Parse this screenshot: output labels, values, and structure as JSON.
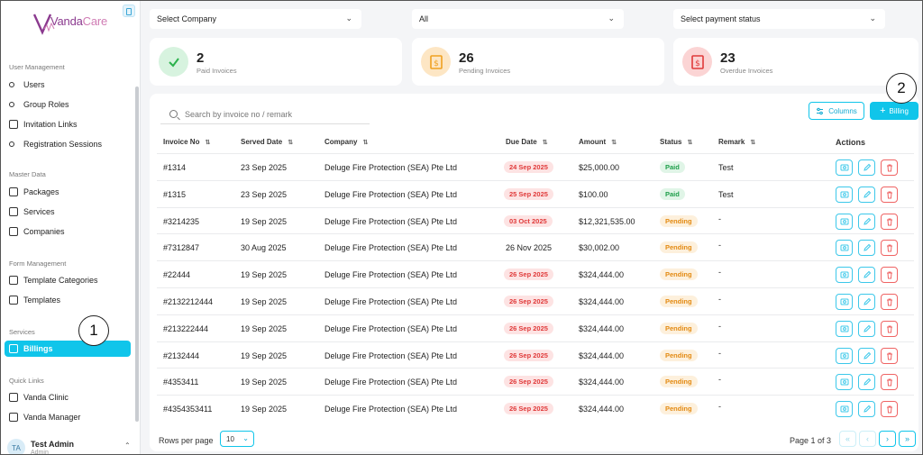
{
  "app": {
    "logo_prefix": "Vanda",
    "logo_suffix": "Care"
  },
  "sidebar": {
    "sections": [
      {
        "label": "User Management",
        "items": [
          "Users",
          "Group Roles",
          "Invitation Links",
          "Registration Sessions"
        ]
      },
      {
        "label": "Master Data",
        "items": [
          "Packages",
          "Services",
          "Companies"
        ]
      },
      {
        "label": "Form Management",
        "items": [
          "Template Categories",
          "Templates"
        ]
      },
      {
        "label": "Services",
        "items": [
          "Billings"
        ]
      },
      {
        "label": "Quick Links",
        "items": [
          "Vanda Clinic",
          "Vanda Manager"
        ]
      }
    ],
    "active_item": "Billings",
    "user": {
      "initials": "TA",
      "name": "Test Admin",
      "role": "Admin"
    }
  },
  "filters": {
    "company": "Select Company",
    "status": "All",
    "payment_status": "Select payment status"
  },
  "stats": [
    {
      "value": "2",
      "label": "Paid Invoices",
      "color": "#2bb24c"
    },
    {
      "value": "26",
      "label": "Pending Invoices",
      "color": "#f0a020"
    },
    {
      "value": "23",
      "label": "Overdue Invoices",
      "color": "#e03a3a"
    }
  ],
  "table": {
    "search_placeholder": "Search by invoice no / remark",
    "columns_button": "Columns",
    "billing_button": "Billing",
    "headers": [
      "Invoice No",
      "Served Date",
      "Company",
      "Due Date",
      "Amount",
      "Status",
      "Remark"
    ],
    "actions_header": "Actions",
    "rows": [
      {
        "invoice": "#1314",
        "served": "23 Sep 2025",
        "company": "Deluge Fire Protection (SEA) Pte Ltd",
        "due": "24 Sep 2025",
        "overdue": true,
        "amount": "$25,000.00",
        "status": "Paid",
        "remark": "Test"
      },
      {
        "invoice": "#1315",
        "served": "23 Sep 2025",
        "company": "Deluge Fire Protection (SEA) Pte Ltd",
        "due": "25 Sep 2025",
        "overdue": true,
        "amount": "$100.00",
        "status": "Paid",
        "remark": "Test"
      },
      {
        "invoice": "#3214235",
        "served": "19 Sep 2025",
        "company": "Deluge Fire Protection (SEA) Pte Ltd",
        "due": "03 Oct 2025",
        "overdue": true,
        "amount": "$12,321,535.00",
        "status": "Pending",
        "remark": "-"
      },
      {
        "invoice": "#7312847",
        "served": "30 Aug 2025",
        "company": "Deluge Fire Protection (SEA) Pte Ltd",
        "due": "26 Nov 2025",
        "overdue": false,
        "amount": "$30,002.00",
        "status": "Pending",
        "remark": "-"
      },
      {
        "invoice": "#22444",
        "served": "19 Sep 2025",
        "company": "Deluge Fire Protection (SEA) Pte Ltd",
        "due": "26 Sep 2025",
        "overdue": true,
        "amount": "$324,444.00",
        "status": "Pending",
        "remark": "-"
      },
      {
        "invoice": "#2132212444",
        "served": "19 Sep 2025",
        "company": "Deluge Fire Protection (SEA) Pte Ltd",
        "due": "26 Sep 2025",
        "overdue": true,
        "amount": "$324,444.00",
        "status": "Pending",
        "remark": "-"
      },
      {
        "invoice": "#213222444",
        "served": "19 Sep 2025",
        "company": "Deluge Fire Protection (SEA) Pte Ltd",
        "due": "26 Sep 2025",
        "overdue": true,
        "amount": "$324,444.00",
        "status": "Pending",
        "remark": "-"
      },
      {
        "invoice": "#2132444",
        "served": "19 Sep 2025",
        "company": "Deluge Fire Protection (SEA) Pte Ltd",
        "due": "26 Sep 2025",
        "overdue": true,
        "amount": "$324,444.00",
        "status": "Pending",
        "remark": "-"
      },
      {
        "invoice": "#4353411",
        "served": "19 Sep 2025",
        "company": "Deluge Fire Protection (SEA) Pte Ltd",
        "due": "26 Sep 2025",
        "overdue": true,
        "amount": "$324,444.00",
        "status": "Pending",
        "remark": "-"
      },
      {
        "invoice": "#4354353411",
        "served": "19 Sep 2025",
        "company": "Deluge Fire Protection (SEA) Pte Ltd",
        "due": "26 Sep 2025",
        "overdue": true,
        "amount": "$324,444.00",
        "status": "Pending",
        "remark": "-"
      }
    ]
  },
  "pagination": {
    "rows_label": "Rows per page",
    "rows_value": "10",
    "page_info": "Page 1 of 3"
  },
  "annotations": [
    "1",
    "2"
  ]
}
